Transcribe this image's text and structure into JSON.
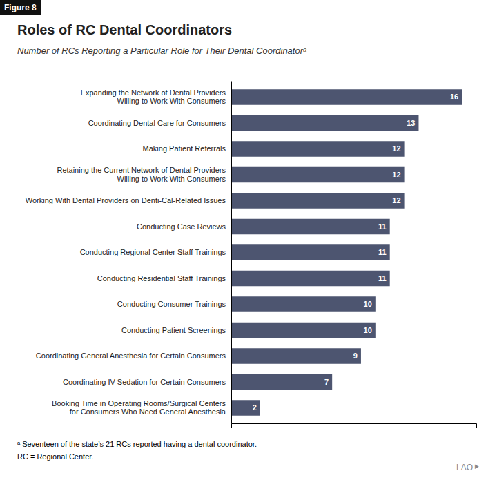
{
  "chart_data": {
    "type": "bar",
    "orientation": "horizontal",
    "title": "Roles of RC Dental Coordinators",
    "subtitle": "Number of RCs Reporting a Particular Role for Their Dental Coordinatorᵃ",
    "annotations": [
      "Figure 8",
      "ᵃ Seventeen of the state’s 21 RCs reported having a dental coordinator.",
      "RC = Regional Center.",
      "LAO⯈"
    ],
    "categories": [
      "Expanding the Network of Dental Providers\nWilling to Work With Consumers",
      "Coordinating Dental Care for Consumers",
      "Making Patient Referrals",
      "Retaining the Current Network of Dental Providers\nWilling to Work With Consumers",
      "Working With Dental Providers on Denti-Cal-Related Issues",
      "Conducting Case Reviews",
      "Conducting Regional Center Staff Trainings",
      "Conducting Residential Staff Trainings",
      "Conducting Consumer Trainings",
      "Conducting Patient Screenings",
      "Coordinating General Anesthesia for Certain Consumers",
      "Coordinating IV Sedation for Certain Consumers",
      "Booking Time in Operating Rooms/Surgical Centers\nfor Consumers Who Need General Anesthesia"
    ],
    "values": [
      16,
      13,
      12,
      12,
      12,
      11,
      11,
      11,
      10,
      10,
      9,
      7,
      2
    ],
    "color": "#4d5570",
    "xlim": [
      0,
      17
    ],
    "xticks": [],
    "tick_labels": "y",
    "data_labels": true,
    "grid": false
  }
}
